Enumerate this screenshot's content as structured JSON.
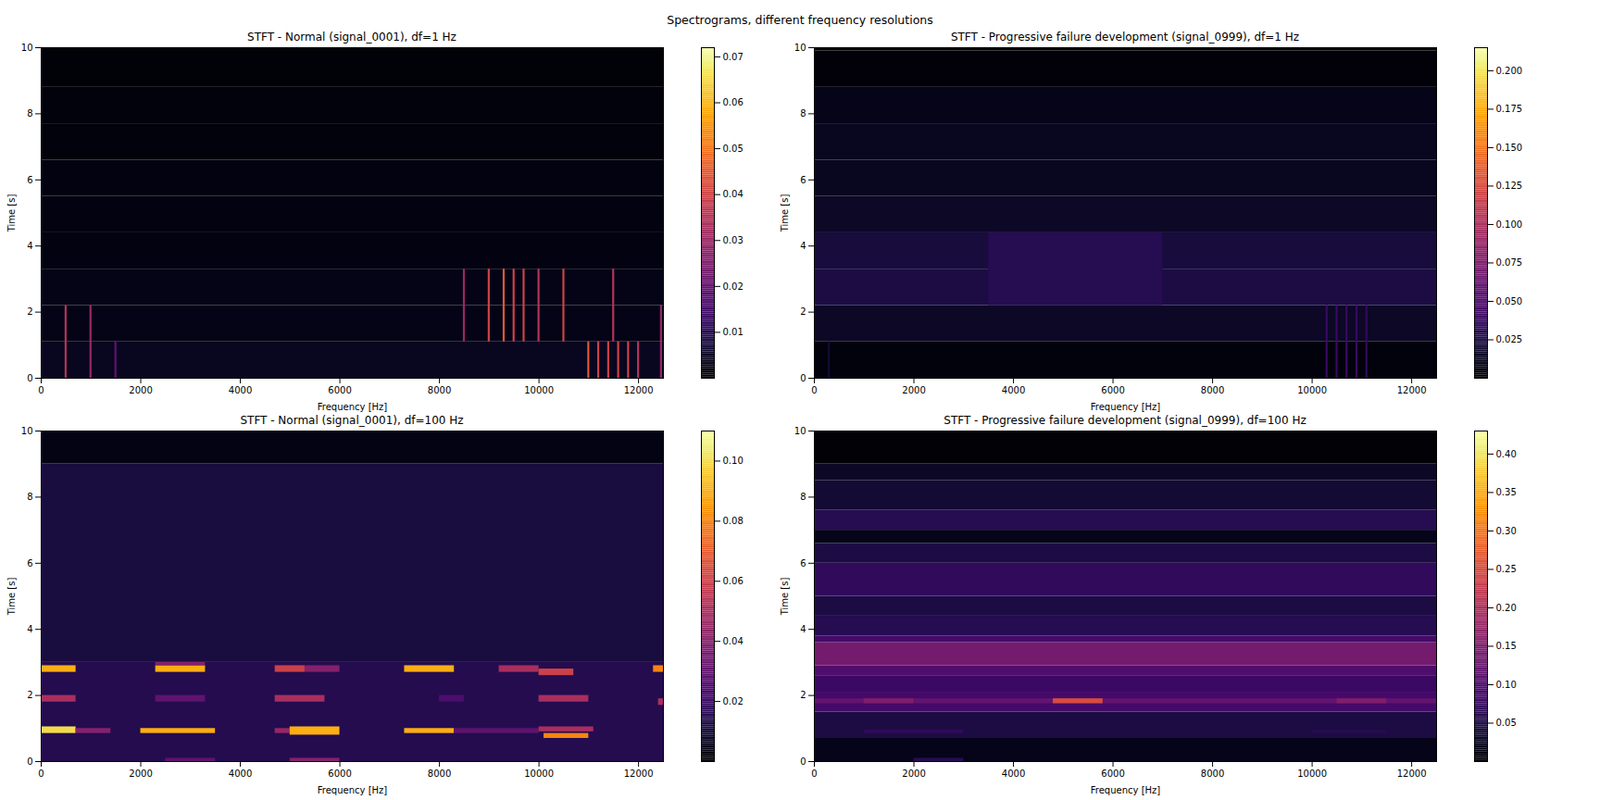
{
  "title": "Spectrograms, different frequency resolutions",
  "chart_data": [
    {
      "type": "heatmap",
      "title": "STFT - Normal (signal_0001), df=1 Hz",
      "x_label": "Frequency [Hz]",
      "y_label": "Time [s]",
      "xlim": [
        0,
        12500
      ],
      "xticks": [
        0,
        2000,
        4000,
        6000,
        8000,
        10000,
        12000
      ],
      "ylim": [
        0,
        10
      ],
      "yticks": [
        0,
        2,
        4,
        6,
        8,
        10
      ],
      "cells": [
        {
          "f0": 0,
          "f1": 12500,
          "t0": 0,
          "t1": 1.1,
          "v": 0.004
        },
        {
          "f0": 0,
          "f1": 12500,
          "t0": 1.1,
          "t1": 2.2,
          "v": 0.003
        },
        {
          "f0": 0,
          "f1": 12500,
          "t0": 2.2,
          "t1": 3.3,
          "v": 0.003
        },
        {
          "f0": 0,
          "f1": 12500,
          "t0": 3.3,
          "t1": 4.4,
          "v": 0.002
        },
        {
          "f0": 0,
          "f1": 12500,
          "t0": 4.4,
          "t1": 5.5,
          "v": 0.002
        },
        {
          "f0": 0,
          "f1": 12500,
          "t0": 5.5,
          "t1": 6.6,
          "v": 0.002
        },
        {
          "f0": 0,
          "f1": 12500,
          "t0": 6.6,
          "t1": 7.7,
          "v": 0.0015
        },
        {
          "f0": 0,
          "f1": 12500,
          "t0": 7.7,
          "t1": 8.8,
          "v": 0.0015
        },
        {
          "f0": 0,
          "f1": 12500,
          "t0": 8.8,
          "t1": 10,
          "v": 0.001
        },
        {
          "f0": 480,
          "f1": 520,
          "t0": 0,
          "t1": 2.2,
          "v": 0.035
        },
        {
          "f0": 980,
          "f1": 1020,
          "t0": 0,
          "t1": 2.2,
          "v": 0.03
        },
        {
          "f0": 1480,
          "f1": 1520,
          "t0": 0,
          "t1": 1.1,
          "v": 0.02
        },
        {
          "f0": 8480,
          "f1": 8520,
          "t0": 1.1,
          "t1": 3.3,
          "v": 0.03
        },
        {
          "f0": 8980,
          "f1": 9020,
          "t0": 1.1,
          "t1": 3.3,
          "v": 0.04
        },
        {
          "f0": 9280,
          "f1": 9320,
          "t0": 1.1,
          "t1": 3.3,
          "v": 0.045
        },
        {
          "f0": 9480,
          "f1": 9520,
          "t0": 1.1,
          "t1": 3.3,
          "v": 0.04
        },
        {
          "f0": 9680,
          "f1": 9720,
          "t0": 1.1,
          "t1": 3.3,
          "v": 0.04
        },
        {
          "f0": 9980,
          "f1": 10020,
          "t0": 1.1,
          "t1": 3.3,
          "v": 0.035
        },
        {
          "f0": 10480,
          "f1": 10520,
          "t0": 1.1,
          "t1": 3.3,
          "v": 0.04
        },
        {
          "f0": 10980,
          "f1": 11020,
          "t0": 0,
          "t1": 1.1,
          "v": 0.045
        },
        {
          "f0": 11180,
          "f1": 11220,
          "t0": 0,
          "t1": 1.1,
          "v": 0.04
        },
        {
          "f0": 11380,
          "f1": 11420,
          "t0": 0,
          "t1": 1.1,
          "v": 0.04
        },
        {
          "f0": 11480,
          "f1": 11520,
          "t0": 1.1,
          "t1": 3.3,
          "v": 0.035
        },
        {
          "f0": 11580,
          "f1": 11620,
          "t0": 0,
          "t1": 1.1,
          "v": 0.04
        },
        {
          "f0": 11780,
          "f1": 11820,
          "t0": 0,
          "t1": 1.1,
          "v": 0.04
        },
        {
          "f0": 11980,
          "f1": 12020,
          "t0": 0,
          "t1": 1.1,
          "v": 0.035
        },
        {
          "f0": 12440,
          "f1": 12480,
          "t0": 0,
          "t1": 2.2,
          "v": 0.03
        }
      ],
      "colorbar": {
        "range": [
          0,
          0.072
        ],
        "ticks": [
          0.01,
          0.02,
          0.03,
          0.04,
          0.05,
          0.06,
          0.07
        ]
      }
    },
    {
      "type": "heatmap",
      "title": "STFT - Progressive failure development (signal_0999), df=1 Hz",
      "x_label": "Frequency [Hz]",
      "y_label": "Time [s]",
      "xlim": [
        0,
        12500
      ],
      "xticks": [
        0,
        2000,
        4000,
        6000,
        8000,
        10000,
        12000
      ],
      "ylim": [
        0,
        10
      ],
      "yticks": [
        0,
        2,
        4,
        6,
        8,
        10
      ],
      "cells": [
        {
          "f0": 0,
          "f1": 12500,
          "t0": 0,
          "t1": 1.1,
          "v": 0.005
        },
        {
          "f0": 0,
          "f1": 12500,
          "t0": 1.1,
          "t1": 2.2,
          "v": 0.015
        },
        {
          "f0": 0,
          "f1": 12500,
          "t0": 2.2,
          "t1": 3.3,
          "v": 0.025
        },
        {
          "f0": 0,
          "f1": 12500,
          "t0": 3.3,
          "t1": 4.4,
          "v": 0.022
        },
        {
          "f0": 0,
          "f1": 12500,
          "t0": 4.4,
          "t1": 5.5,
          "v": 0.015
        },
        {
          "f0": 0,
          "f1": 12500,
          "t0": 5.5,
          "t1": 6.6,
          "v": 0.012
        },
        {
          "f0": 0,
          "f1": 12500,
          "t0": 6.6,
          "t1": 7.7,
          "v": 0.012
        },
        {
          "f0": 0,
          "f1": 12500,
          "t0": 7.7,
          "t1": 8.8,
          "v": 0.01
        },
        {
          "f0": 0,
          "f1": 12500,
          "t0": 8.8,
          "t1": 9.9,
          "v": 0.004
        },
        {
          "f0": 0,
          "f1": 12500,
          "t0": 9.9,
          "t1": 10,
          "v": 0.002
        },
        {
          "f0": 3500,
          "f1": 7000,
          "t0": 2.2,
          "t1": 4.4,
          "v": 0.03
        },
        {
          "f0": 280,
          "f1": 320,
          "t0": 0,
          "t1": 1.1,
          "v": 0.02
        },
        {
          "f0": 10280,
          "f1": 10320,
          "t0": 0,
          "t1": 2.2,
          "v": 0.04
        },
        {
          "f0": 10480,
          "f1": 10520,
          "t0": 0,
          "t1": 2.2,
          "v": 0.04
        },
        {
          "f0": 10680,
          "f1": 10720,
          "t0": 0,
          "t1": 2.2,
          "v": 0.04
        },
        {
          "f0": 10880,
          "f1": 10920,
          "t0": 0,
          "t1": 2.2,
          "v": 0.04
        },
        {
          "f0": 11080,
          "f1": 11120,
          "t0": 0,
          "t1": 2.2,
          "v": 0.035
        }
      ],
      "colorbar": {
        "range": [
          0,
          0.215
        ],
        "ticks": [
          0.025,
          {
            "value": 0.05,
            "label": "0.050"
          },
          0.075,
          {
            "value": 0.1,
            "label": "0.100"
          },
          0.125,
          {
            "value": 0.15,
            "label": "0.150"
          },
          0.175,
          {
            "value": 0.2,
            "label": "0.200"
          }
        ]
      }
    },
    {
      "type": "heatmap",
      "title": "STFT - Normal (signal_0001), df=100 Hz",
      "x_label": "Frequency [Hz]",
      "y_label": "Time [s]",
      "xlim": [
        0,
        12500
      ],
      "xticks": [
        0,
        2000,
        4000,
        6000,
        8000,
        10000,
        12000
      ],
      "ylim": [
        0,
        10
      ],
      "yticks": [
        0,
        2,
        4,
        6,
        8,
        10
      ],
      "cells": [
        {
          "f0": 0,
          "f1": 12500,
          "t0": 0,
          "t1": 3,
          "v": 0.015
        },
        {
          "f0": 0,
          "f1": 12500,
          "t0": 3,
          "t1": 9,
          "v": 0.012
        },
        {
          "f0": 0,
          "f1": 12500,
          "t0": 9,
          "t1": 10,
          "v": 0.004
        },
        {
          "f0": 0,
          "f1": 700,
          "t0": 2.7,
          "t1": 2.9,
          "v": 0.09
        },
        {
          "f0": 2300,
          "f1": 3300,
          "t0": 2.7,
          "t1": 2.9,
          "v": 0.09
        },
        {
          "f0": 2300,
          "f1": 3300,
          "t0": 2.9,
          "t1": 3.0,
          "v": 0.04
        },
        {
          "f0": 4700,
          "f1": 5300,
          "t0": 2.7,
          "t1": 2.9,
          "v": 0.06
        },
        {
          "f0": 5300,
          "f1": 6000,
          "t0": 2.7,
          "t1": 2.9,
          "v": 0.04
        },
        {
          "f0": 7300,
          "f1": 8300,
          "t0": 2.7,
          "t1": 2.9,
          "v": 0.09
        },
        {
          "f0": 9200,
          "f1": 10000,
          "t0": 2.7,
          "t1": 2.9,
          "v": 0.05
        },
        {
          "f0": 10000,
          "f1": 10700,
          "t0": 2.6,
          "t1": 2.8,
          "v": 0.06
        },
        {
          "f0": 12300,
          "f1": 12500,
          "t0": 2.7,
          "t1": 2.9,
          "v": 0.08
        },
        {
          "f0": 0,
          "f1": 700,
          "t0": 1.8,
          "t1": 2.0,
          "v": 0.05
        },
        {
          "f0": 2300,
          "f1": 3300,
          "t0": 1.8,
          "t1": 2.0,
          "v": 0.03
        },
        {
          "f0": 4700,
          "f1": 5700,
          "t0": 1.8,
          "t1": 2.0,
          "v": 0.05
        },
        {
          "f0": 8000,
          "f1": 8500,
          "t0": 1.8,
          "t1": 2.0,
          "v": 0.025
        },
        {
          "f0": 10000,
          "f1": 11000,
          "t0": 1.8,
          "t1": 2.0,
          "v": 0.05
        },
        {
          "f0": 12400,
          "f1": 12500,
          "t0": 1.7,
          "t1": 1.9,
          "v": 0.05
        },
        {
          "f0": 0,
          "f1": 700,
          "t0": 0.85,
          "t1": 1.05,
          "v": 0.1
        },
        {
          "f0": 700,
          "f1": 1400,
          "t0": 0.85,
          "t1": 1.0,
          "v": 0.04
        },
        {
          "f0": 2000,
          "f1": 3500,
          "t0": 0.85,
          "t1": 1.0,
          "v": 0.09
        },
        {
          "f0": 4700,
          "f1": 5000,
          "t0": 0.85,
          "t1": 1.0,
          "v": 0.045
        },
        {
          "f0": 5000,
          "f1": 6000,
          "t0": 0.8,
          "t1": 1.05,
          "v": 0.09
        },
        {
          "f0": 7300,
          "f1": 8300,
          "t0": 0.85,
          "t1": 1.0,
          "v": 0.09
        },
        {
          "f0": 8300,
          "f1": 10000,
          "t0": 0.85,
          "t1": 1.0,
          "v": 0.03
        },
        {
          "f0": 10000,
          "f1": 11100,
          "t0": 0.9,
          "t1": 1.05,
          "v": 0.05
        },
        {
          "f0": 10100,
          "f1": 11000,
          "t0": 0.7,
          "t1": 0.85,
          "v": 0.08
        },
        {
          "f0": 2500,
          "f1": 3500,
          "t0": 0,
          "t1": 0.1,
          "v": 0.03
        },
        {
          "f0": 5000,
          "f1": 6000,
          "t0": 0,
          "t1": 0.1,
          "v": 0.04
        }
      ],
      "colorbar": {
        "range": [
          0,
          0.11
        ],
        "ticks": [
          0.02,
          0.04,
          0.06,
          0.08,
          {
            "value": 0.1,
            "label": "0.10"
          }
        ]
      }
    },
    {
      "type": "heatmap",
      "title": "STFT - Progressive failure development (signal_0999), df=100 Hz",
      "x_label": "Frequency [Hz]",
      "y_label": "Time [s]",
      "xlim": [
        0,
        12500
      ],
      "xticks": [
        0,
        2000,
        4000,
        6000,
        8000,
        10000,
        12000
      ],
      "ylim": [
        0,
        10
      ],
      "yticks": [
        0,
        2,
        4,
        6,
        8,
        10
      ],
      "cells": [
        {
          "f0": 0,
          "f1": 12500,
          "t0": 0,
          "t1": 0.7,
          "v": 0.02
        },
        {
          "f0": 0,
          "f1": 12500,
          "t0": 0.7,
          "t1": 1.5,
          "v": 0.05
        },
        {
          "f0": 0,
          "f1": 12500,
          "t0": 1.5,
          "t1": 2.1,
          "v": 0.09
        },
        {
          "f0": 0,
          "f1": 12500,
          "t0": 2.1,
          "t1": 2.6,
          "v": 0.08
        },
        {
          "f0": 0,
          "f1": 12500,
          "t0": 2.6,
          "t1": 2.9,
          "v": 0.1
        },
        {
          "f0": 0,
          "f1": 12500,
          "t0": 2.9,
          "t1": 3.6,
          "v": 0.14
        },
        {
          "f0": 0,
          "f1": 12500,
          "t0": 3.6,
          "t1": 3.8,
          "v": 0.09
        },
        {
          "f0": 0,
          "f1": 12500,
          "t0": 3.8,
          "t1": 4.4,
          "v": 0.06
        },
        {
          "f0": 0,
          "f1": 12500,
          "t0": 4.4,
          "t1": 5.0,
          "v": 0.05
        },
        {
          "f0": 0,
          "f1": 12500,
          "t0": 5.0,
          "t1": 6.0,
          "v": 0.07
        },
        {
          "f0": 0,
          "f1": 12500,
          "t0": 6.0,
          "t1": 6.6,
          "v": 0.05
        },
        {
          "f0": 0,
          "f1": 12500,
          "t0": 6.6,
          "t1": 7.0,
          "v": 0.02
        },
        {
          "f0": 0,
          "f1": 12500,
          "t0": 7.0,
          "t1": 7.6,
          "v": 0.06
        },
        {
          "f0": 0,
          "f1": 12500,
          "t0": 7.6,
          "t1": 8.5,
          "v": 0.04
        },
        {
          "f0": 0,
          "f1": 12500,
          "t0": 8.5,
          "t1": 9.0,
          "v": 0.03
        },
        {
          "f0": 0,
          "f1": 12500,
          "t0": 9.0,
          "t1": 10,
          "v": 0.005
        },
        {
          "f0": 0,
          "f1": 12500,
          "t0": 1.75,
          "t1": 1.9,
          "v": 0.12
        },
        {
          "f0": 1000,
          "f1": 2000,
          "t0": 1.75,
          "t1": 1.9,
          "v": 0.15
        },
        {
          "f0": 4800,
          "f1": 5800,
          "t0": 1.75,
          "t1": 1.9,
          "v": 0.25
        },
        {
          "f0": 10500,
          "f1": 11500,
          "t0": 1.75,
          "t1": 1.9,
          "v": 0.15
        },
        {
          "f0": 2000,
          "f1": 3000,
          "t0": 0,
          "t1": 0.1,
          "v": 0.06
        },
        {
          "f0": 1000,
          "f1": 3000,
          "t0": 0.85,
          "t1": 0.95,
          "v": 0.07
        },
        {
          "f0": 10000,
          "f1": 11500,
          "t0": 0.85,
          "t1": 0.95,
          "v": 0.06
        }
      ],
      "colorbar": {
        "range": [
          0,
          0.43
        ],
        "ticks": [
          0.05,
          {
            "value": 0.1,
            "label": "0.10"
          },
          0.15,
          {
            "value": 0.2,
            "label": "0.20"
          },
          0.25,
          {
            "value": 0.3,
            "label": "0.30"
          },
          0.35,
          {
            "value": 0.4,
            "label": "0.40"
          }
        ]
      }
    }
  ]
}
